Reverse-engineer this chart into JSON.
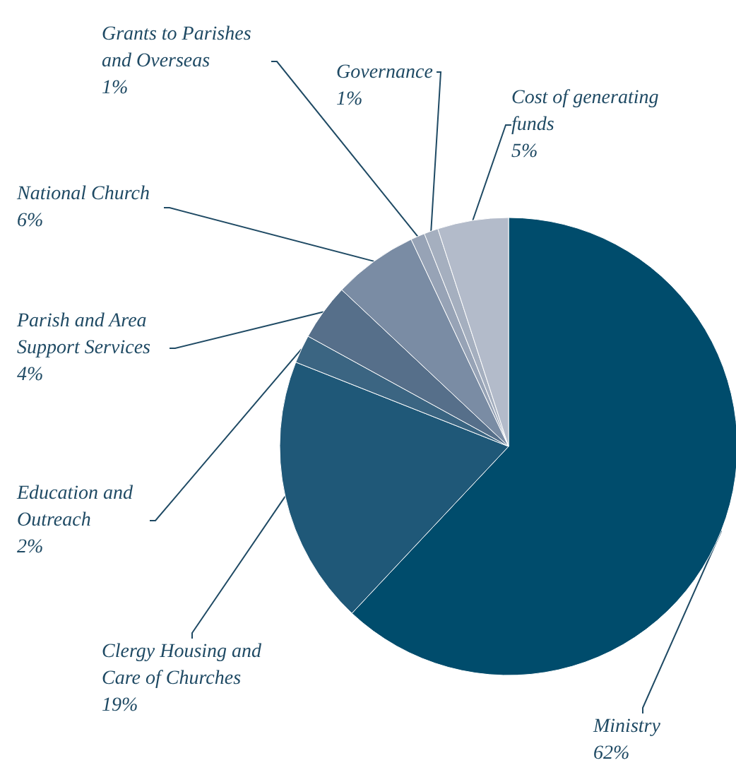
{
  "chart_data": {
    "type": "pie",
    "categories": [
      "Ministry",
      "Clergy Housing and Care of Churches",
      "Education and Outreach",
      "Parish and Area Support Services",
      "National Church",
      "Grants to Parishes and Overseas",
      "Governance",
      "Cost of generating funds"
    ],
    "values": [
      62,
      19,
      2,
      4,
      6,
      1,
      1,
      5
    ],
    "value_labels": [
      "62%",
      "19%",
      "2%",
      "4%",
      "6%",
      "1%",
      "1%",
      "5%"
    ],
    "colors": [
      "#004c6c",
      "#1f5878",
      "#3b6582",
      "#566f8a",
      "#7a8ca4",
      "#97a3b6",
      "#a5afbf",
      "#b3bbca"
    ],
    "legend": false
  }
}
